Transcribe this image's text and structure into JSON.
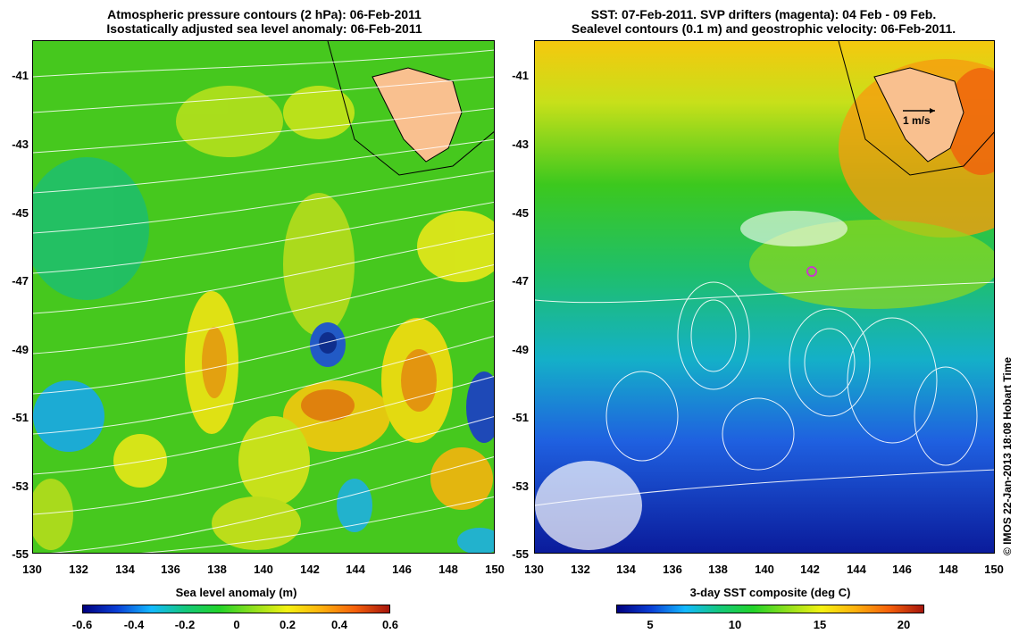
{
  "left_panel": {
    "title_line1": "Atmospheric pressure contours (2 hPa): 06-Feb-2011",
    "title_line2": "Isostatically adjusted sea level anomaly: 06-Feb-2011",
    "colorbar": {
      "title": "Sea level anomaly (m)",
      "ticks": [
        "-0.6",
        "-0.4",
        "-0.2",
        "0",
        "0.2",
        "0.4",
        "0.6"
      ],
      "colors": [
        "#00007f",
        "#0a3fd6",
        "#13b9ff",
        "#14c87c",
        "#22d32a",
        "#8fe01d",
        "#f4f212",
        "#fdb10d",
        "#f5600b",
        "#a6160c"
      ]
    }
  },
  "right_panel": {
    "title_line1": "SST: 07-Feb-2011. SVP drifters (magenta): 04 Feb - 09 Feb.",
    "title_line2": "Sealevel contours (0.1 m) and geostrophic velocity: 06-Feb-2011.",
    "scale_label": "1 m/s",
    "colorbar": {
      "title": "3-day SST composite (deg C)",
      "ticks": [
        "5",
        "10",
        "15",
        "20"
      ],
      "colors": [
        "#00007f",
        "#0a3fd6",
        "#13b9ff",
        "#14c87c",
        "#22d32a",
        "#8fe01d",
        "#f4f212",
        "#fdb10d",
        "#f5600b",
        "#a6160c"
      ]
    }
  },
  "axes": {
    "lat_ticks": [
      "-41",
      "-43",
      "-45",
      "-47",
      "-49",
      "-51",
      "-53",
      "-55"
    ],
    "lon_ticks": [
      "130",
      "132",
      "134",
      "136",
      "138",
      "140",
      "142",
      "144",
      "146",
      "148",
      "150"
    ]
  },
  "colors": {
    "land": "#f9c08f",
    "contour": "#ffffff",
    "drifter": "#c83cc8"
  },
  "credit": "© IMOS 22-Jan-2013 18:08 Hobart Time"
}
